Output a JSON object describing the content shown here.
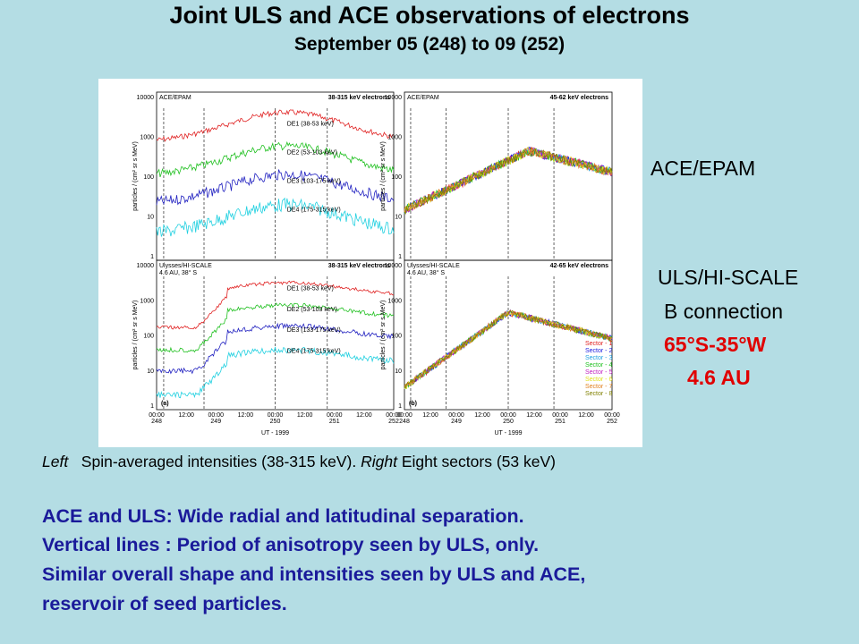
{
  "header": {
    "title": "Joint ULS and ACE observations of electrons",
    "subtitle": "September 05 (248) to 09 (252)"
  },
  "figure": {
    "panels": [
      {
        "instrument": "ACE/EPAM",
        "energy": "38-315 keV electrons",
        "channels": [
          "DE1 (38-53 keV)",
          "DE2 (53-103 keV)",
          "DE3 (103-175 keV)",
          "DE4 (175-315 keV)"
        ]
      },
      {
        "instrument": "ACE/EPAM",
        "energy": "45-62 keV electrons"
      },
      {
        "instrument": "Ulysses/HI-SCALE",
        "location": "4.6 AU, 38° S",
        "energy": "38-315 keV electrons",
        "channels": [
          "DE1 (38-53 keV)",
          "DE2 (53-103 keV)",
          "DE3 (133-175 keV)",
          "DE4 (175-315 keV)"
        ],
        "letter": "(a)"
      },
      {
        "instrument": "Ulysses/HI-SCALE",
        "location": "4.6 AU, 38° S",
        "energy": "42-65 keV electrons",
        "sectors": [
          "Sector - 1",
          "Sector - 2",
          "Sector - 3",
          "Sector - 4",
          "Sector - 5",
          "Sector - 6",
          "Sector - 7",
          "Sector - 8"
        ],
        "letter": "(b)"
      }
    ],
    "yticks": [
      "10000",
      "1000",
      "100",
      "10",
      "1"
    ],
    "ylabel": "particles / (cm² sr s MeV)",
    "times": [
      "00:00",
      "12:00",
      "00:00",
      "12:00",
      "00:00",
      "12:00",
      "00:00",
      "12:00",
      "00:00"
    ],
    "days": [
      "248",
      "249",
      "250",
      "251",
      "252"
    ],
    "xlabel": "UT - 1999"
  },
  "side": {
    "ace": "ACE/EPAM",
    "uls": "ULS/HI-SCALE",
    "connection": "B connection",
    "coords": "65°S-35°W",
    "distance": "4.6 AU"
  },
  "caption": {
    "left": "Left",
    "left_text": "Spin-averaged intensities  (38-315 keV).",
    "right": "Right",
    "right_text": "Eight sectors (53 keV)"
  },
  "body": [
    "ACE and ULS: Wide radial and latitudinal separation.",
    "Vertical lines : Period of anisotropy seen by ULS, only.",
    "Similar overall shape and intensities seen by ULS and ACE,",
    "reservoir of seed particles."
  ]
}
